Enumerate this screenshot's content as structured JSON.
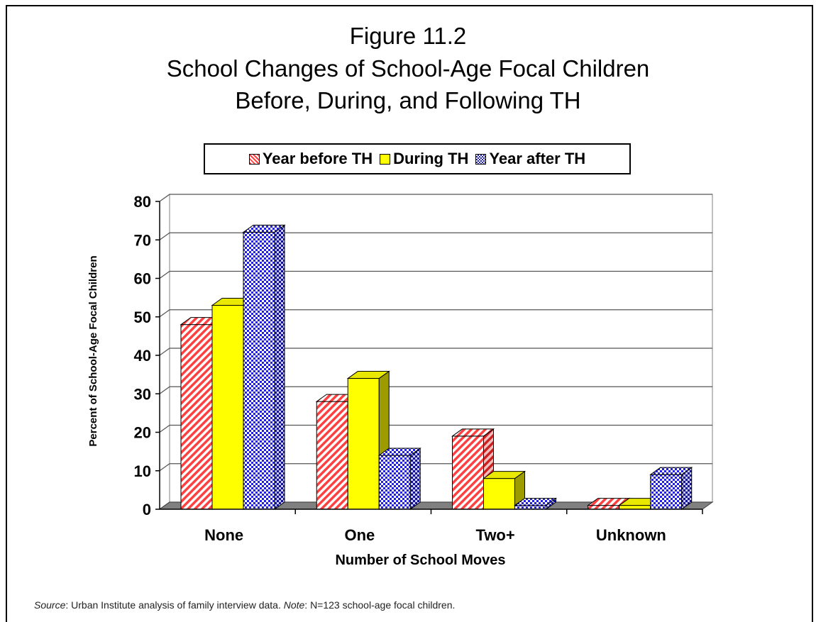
{
  "title": {
    "line1": "Figure 11.2",
    "line2": "School Changes of School-Age Focal Children",
    "line3": "Before, During, and Following TH"
  },
  "source_note": {
    "source_label": "Source",
    "source_text": ": Urban Institute analysis of family interview data.  ",
    "note_label": "Note",
    "note_text": ": N=123 school-age focal children."
  },
  "colors": {
    "year_before": "#ff5555",
    "during": "#ffff00",
    "year_after": "#2a2ae0"
  },
  "chart_data": {
    "type": "bar",
    "categories": [
      "None",
      "One",
      "Two+",
      "Unknown"
    ],
    "series": [
      {
        "name": "Year before TH",
        "values": [
          48,
          28,
          19,
          1
        ]
      },
      {
        "name": "During TH",
        "values": [
          53,
          34,
          8,
          1
        ]
      },
      {
        "name": "Year after TH",
        "values": [
          72,
          14,
          1,
          9
        ]
      }
    ],
    "xlabel": "Number of School Moves",
    "ylabel": "Percent of School-Age Focal Children",
    "ylim": [
      0,
      80
    ],
    "yticks": [
      "0",
      "10",
      "20",
      "30",
      "40",
      "50",
      "60",
      "70",
      "80"
    ],
    "grid": true,
    "legend_position": "top",
    "style": "3d"
  }
}
